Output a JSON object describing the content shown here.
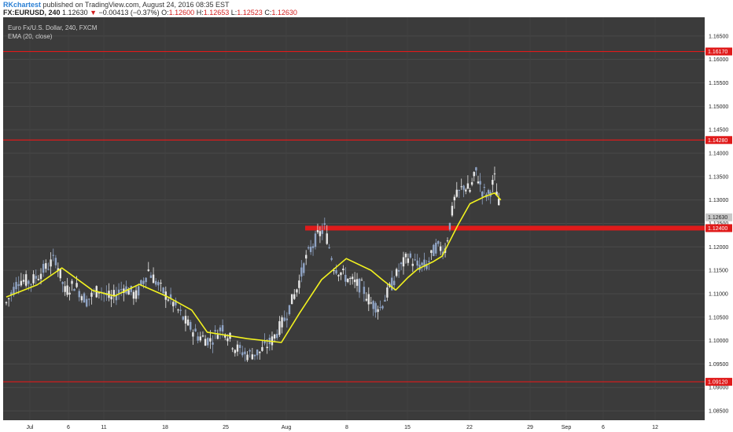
{
  "header": {
    "author": "RKchartest",
    "published": "published on TradingView.com, August 24, 2016 08:35 EST",
    "symbol": "FX:EURUSD, 240",
    "last": "1.12630",
    "change_arrow": "▼",
    "change": "−0.00413 (−0.37%)",
    "o_label": "O:",
    "o": "1.12600",
    "h_label": "H:",
    "h": "1.12653",
    "l_label": "L:",
    "l": "1.12523",
    "c_label": "C:",
    "c": "1.12630"
  },
  "colors": {
    "background": "#3b3b3b",
    "grid": "#4a4a4a",
    "candle": "#e8e8e8",
    "candle_dim": "#8fa3c4",
    "ema": "#f2f21f",
    "level": "#e01a1a",
    "price_label": "#c8c8c8"
  },
  "chart_data": {
    "type": "line",
    "title": "Euro Fx/U.S. Dollar, 240, FXCM",
    "indicator": "EMA (20, close)",
    "ylim": [
      1.083,
      1.169
    ],
    "yticks": [
      "1.16500",
      "1.16000",
      "1.15500",
      "1.15000",
      "1.14500",
      "1.14000",
      "1.13500",
      "1.13000",
      "1.12500",
      "1.12000",
      "1.11500",
      "1.11000",
      "1.10500",
      "1.10000",
      "1.09500",
      "1.09000",
      "1.08500"
    ],
    "xticks": [
      "Jul",
      "6",
      "11",
      "18",
      "25",
      "Aug",
      "8",
      "15",
      "22",
      "29",
      "Sep",
      "6",
      "12"
    ],
    "grid": true,
    "last_price_label": "1.12630",
    "levels": [
      {
        "label": "1.16170",
        "value": 1.1617
      },
      {
        "label": "1.14280",
        "value": 1.1428
      },
      {
        "label": "1.12400",
        "value": 1.124
      },
      {
        "label": "1.09120",
        "value": 1.0912
      }
    ],
    "ema_series": {
      "name": "EMA (20, close)",
      "x": [
        0,
        10,
        18,
        28,
        35,
        43,
        52,
        60,
        65,
        78,
        89,
        95,
        102,
        110
      ],
      "y": [
        1.1093,
        1.1119,
        1.1155,
        1.1107,
        1.1095,
        1.112,
        1.1094,
        1.1065,
        1.1018,
        1.1004,
        1.0996,
        1.106,
        1.113,
        1.1175
      ]
    },
    "ema_series_2": {
      "x": [
        110,
        118,
        122,
        126,
        130,
        133,
        138,
        141,
        146,
        150,
        155,
        158,
        160
      ],
      "y": [
        1.1175,
        1.115,
        1.1128,
        1.1108,
        1.1135,
        1.1152,
        1.1168,
        1.118,
        1.1245,
        1.1292,
        1.1308,
        1.1315,
        1.13
      ]
    },
    "price_series": {
      "name": "EURUSD 240",
      "x": [
        0,
        4,
        8,
        12,
        16,
        19,
        22,
        26,
        30,
        34,
        38,
        42,
        46,
        50,
        54,
        58,
        62,
        66,
        70,
        74,
        78,
        82,
        86,
        90,
        94,
        97,
        100,
        103,
        106,
        109,
        112,
        115,
        118,
        121,
        124,
        127,
        130,
        133,
        136,
        139,
        142,
        145,
        148,
        150,
        152,
        154,
        156,
        158,
        160
      ],
      "y": [
        1.108,
        1.113,
        1.1125,
        1.115,
        1.1175,
        1.1105,
        1.112,
        1.1085,
        1.111,
        1.1088,
        1.1115,
        1.1095,
        1.115,
        1.111,
        1.108,
        1.104,
        1.101,
        1.1,
        1.103,
        1.0985,
        1.097,
        1.0975,
        1.1,
        1.1045,
        1.111,
        1.1175,
        1.1215,
        1.124,
        1.116,
        1.114,
        1.1125,
        1.1115,
        1.108,
        1.107,
        1.111,
        1.115,
        1.118,
        1.116,
        1.116,
        1.12,
        1.1195,
        1.13,
        1.133,
        1.132,
        1.136,
        1.132,
        1.131,
        1.1345,
        1.1263
      ]
    }
  }
}
